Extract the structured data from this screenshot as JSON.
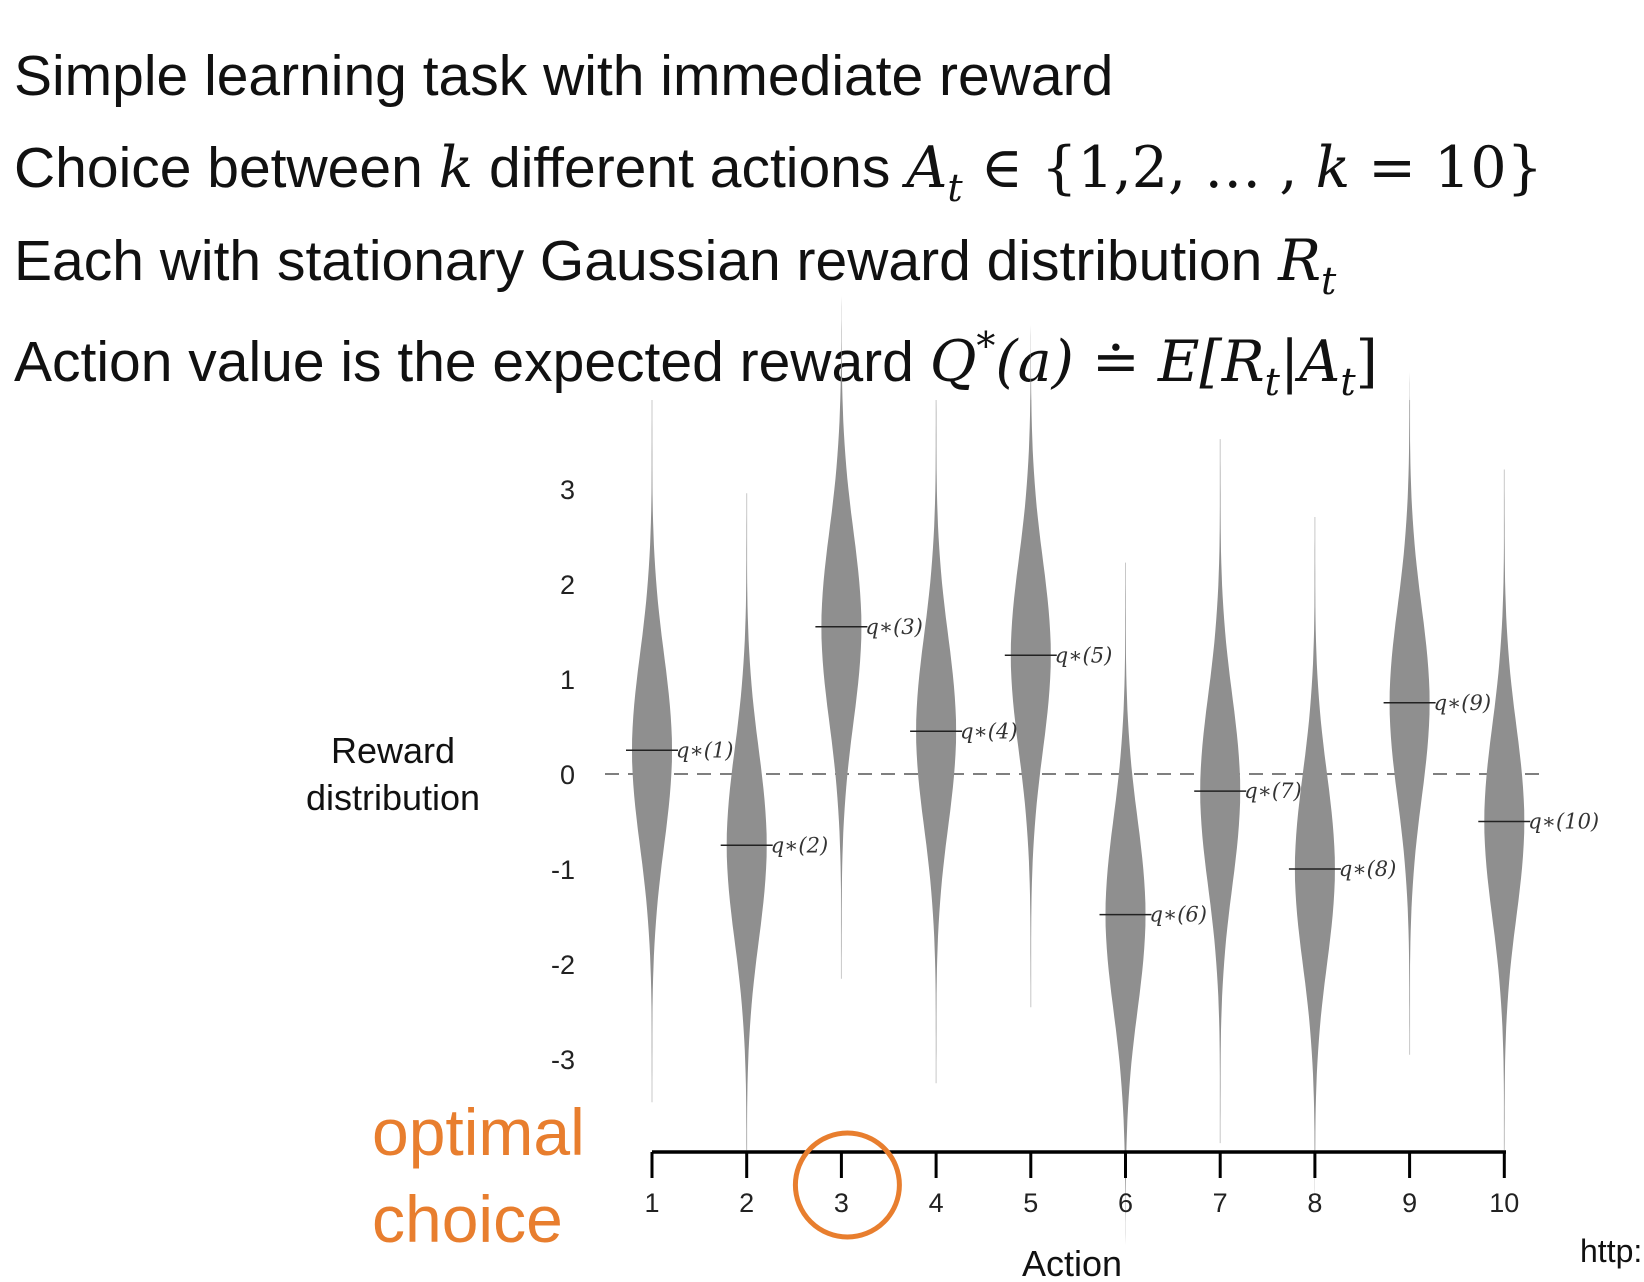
{
  "bullets": {
    "line1": "Simple learning task with immediate reward",
    "line2_text_a": "Choice between ",
    "line2_k": "k",
    "line2_text_b": " different actions ",
    "line2_A": "A",
    "line2_sub": "t",
    "line2_set_open": " ∈ {1,2, … , ",
    "line2_k2": "k",
    "line2_set_close": " = 10}",
    "line3_text": "Each with stationary Gaussian reward distribution ",
    "line3_R": "R",
    "line3_sub": "t",
    "line4_text": "Action value is the expected reward ",
    "line4_Q": "Q",
    "line4_sup": "*",
    "line4_arg": "(a) ≐ E[",
    "line4_R": "R",
    "line4_sub1": "t",
    "line4_bar": "|",
    "line4_A": "A",
    "line4_sub2": "t",
    "line4_close": "]"
  },
  "chart_data": {
    "type": "violin",
    "ylabel": "Reward distribution",
    "xlabel": "Action",
    "categories": [
      "1",
      "2",
      "3",
      "4",
      "5",
      "6",
      "7",
      "8",
      "9",
      "10"
    ],
    "means": [
      0.25,
      -0.75,
      1.55,
      0.45,
      1.25,
      -1.48,
      -0.18,
      -1.0,
      0.75,
      -0.5
    ],
    "mean_labels": [
      "q∗(1)",
      "q∗(2)",
      "q∗(3)",
      "q∗(4)",
      "q∗(5)",
      "q∗(6)",
      "q∗(7)",
      "q∗(8)",
      "q∗(9)",
      "q∗(10)"
    ],
    "yticks": [
      "3",
      "2",
      "1",
      "0",
      "-1",
      "-2",
      "-3"
    ],
    "ylim": [
      -4,
      4
    ],
    "std": 1,
    "zero_line": "dashed",
    "highlight": {
      "action": "3",
      "label": "optimal choice",
      "label_line1": "optimal",
      "label_line2": "choice",
      "color": "#e87e2e"
    },
    "violin_color": "#8f8f8f"
  },
  "footer": {
    "url_fragment": "http:"
  }
}
